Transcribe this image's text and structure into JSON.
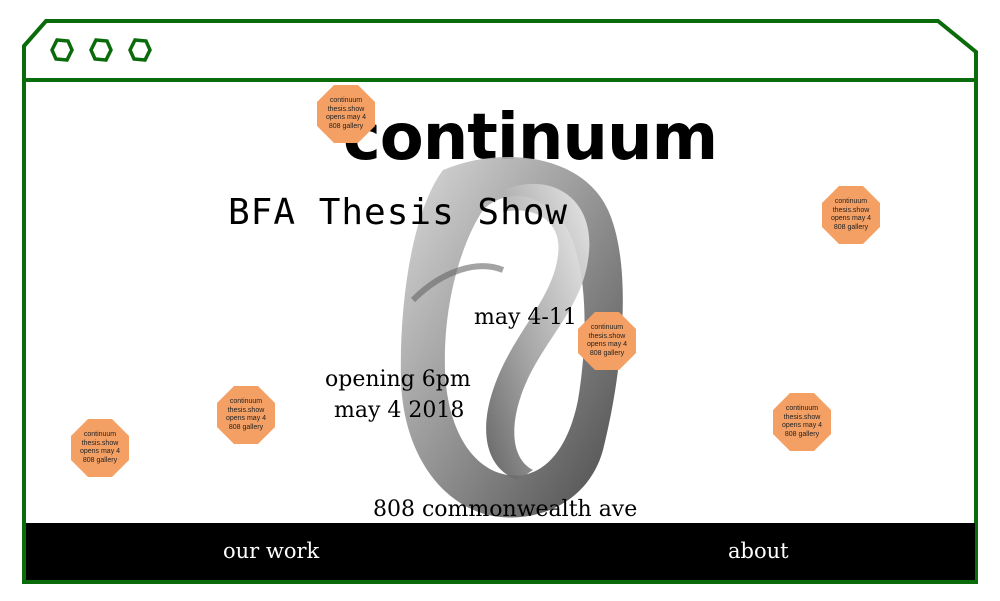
{
  "window": {
    "frame_color": "#0a6b0a",
    "buttons": [
      "window-button-1",
      "window-button-2",
      "window-button-3"
    ]
  },
  "hero": {
    "logo_text": "continuum",
    "subtitle": "BFA Thesis Show",
    "date_range": "may 4-11",
    "opening_time": "opening 6pm",
    "opening_date": "may 4 2018",
    "address": "808 commonwealth ave"
  },
  "badge": {
    "color": "#f4a064",
    "line1": "continuum",
    "line2": "thesis.show",
    "line3": "opens may 4",
    "line4": "808 gallery"
  },
  "nav": {
    "our_work": "our work",
    "about": "about"
  }
}
